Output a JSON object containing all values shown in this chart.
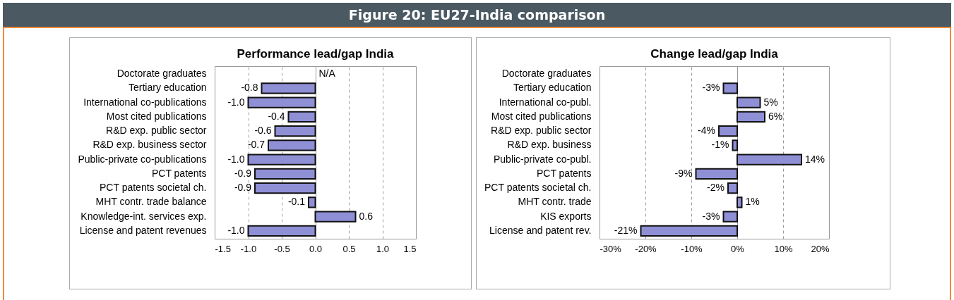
{
  "chart_data": [
    {
      "type": "other",
      "title": "Figure 20: EU27-India comparison"
    },
    {
      "type": "bar",
      "orientation": "horizontal",
      "title": "Performance lead/gap India",
      "color": "#8f8fd6",
      "grid": "x",
      "categories": [
        "Doctorate graduates",
        "Tertiary education",
        "International co-publications",
        "Most cited publications",
        "R&D exp. public sector",
        "R&D exp. business sector",
        "Public-private co-publications",
        "PCT patents",
        "PCT patents societal ch.",
        "MHT contr. trade balance",
        "Knowledge-int. services exp.",
        "License and patent revenues"
      ],
      "values": [
        null,
        -0.8,
        -1.0,
        -0.4,
        -0.6,
        -0.7,
        -1.0,
        -0.9,
        -0.9,
        -0.1,
        0.6,
        -1.0
      ],
      "value_labels": [
        "N/A",
        "-0.8",
        "-1.0",
        "-0.4",
        "-0.6",
        "-0.7",
        "-1.0",
        "-0.9",
        "-0.9",
        "-0.1",
        "0.6",
        "-1.0"
      ],
      "xlim": [
        -1.5,
        1.5
      ],
      "xticks": [
        -1.5,
        {
          "value": -1,
          "label": "-1.0"
        },
        -0.5,
        {
          "value": 0,
          "label": "0.0"
        },
        0.5,
        {
          "value": 1,
          "label": "1.0"
        },
        1.5
      ]
    },
    {
      "type": "bar",
      "orientation": "horizontal",
      "title": "Change lead/gap India",
      "color": "#8f8fd6",
      "grid": "x",
      "categories": [
        "Doctorate graduates",
        "Tertiary education",
        "International co-publ.",
        "Most cited publications",
        "R&D exp. public sector",
        "R&D exp. business",
        "Public-private co-publ.",
        "PCT patents",
        "PCT patents societal ch.",
        "MHT contr. trade",
        "KIS exports",
        "License and patent rev."
      ],
      "values": [
        null,
        -3,
        5,
        6,
        -4,
        -1,
        14,
        -9,
        -2,
        1,
        -3,
        -21
      ],
      "value_labels": [
        null,
        "-3%",
        "5%",
        "6%",
        "-4%",
        "-1%",
        "14%",
        "-9%",
        "-2%",
        "1%",
        "-3%",
        "-21%"
      ],
      "xlim": [
        -30,
        20
      ],
      "xticks": [
        {
          "value": -30,
          "label": "-30%"
        },
        {
          "value": -20,
          "label": "-20%"
        },
        {
          "value": -10,
          "label": "-10%"
        },
        {
          "value": 0,
          "label": "0%"
        },
        {
          "value": 10,
          "label": "10%"
        },
        {
          "value": 20,
          "label": "20%"
        }
      ]
    }
  ]
}
